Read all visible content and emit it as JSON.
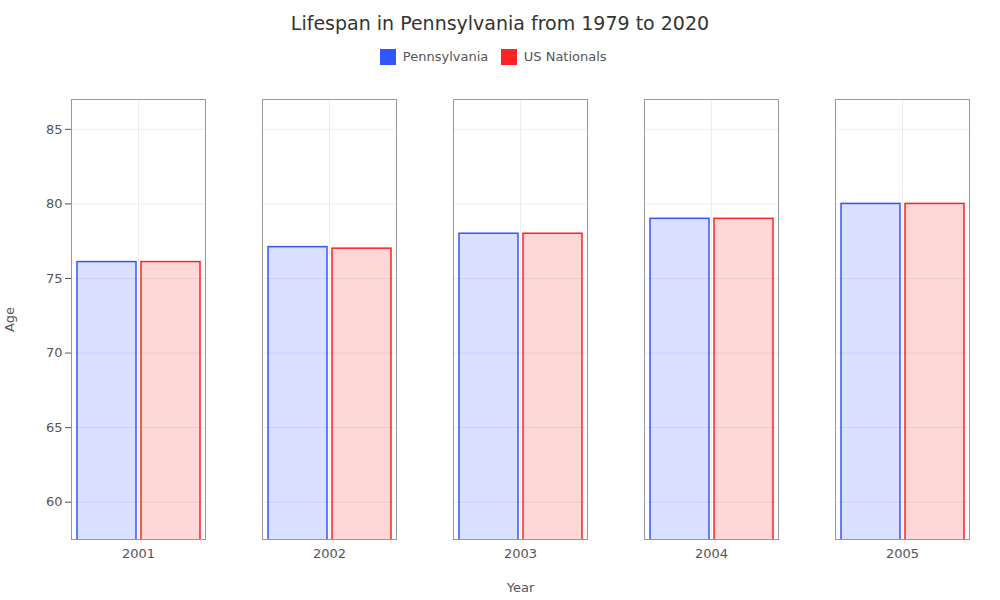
{
  "chart_data": {
    "type": "bar",
    "title": "Lifespan in Pennsylvania from 1979 to 2020",
    "x_label": "Year",
    "y_label": "Age",
    "categories": [
      2001,
      2002,
      2003,
      2004,
      2005
    ],
    "series": [
      {
        "name": "Pennsylvania",
        "color": "#3355ff",
        "values": [
          76.1,
          77.1,
          78.0,
          79.0,
          80.0
        ]
      },
      {
        "name": "US Nationals",
        "color": "#ff2222",
        "values": [
          76.1,
          77.0,
          78.0,
          79.0,
          80.0
        ]
      }
    ],
    "ylim": [
      57.5,
      87
    ],
    "yticks": [
      60,
      65,
      70,
      75,
      80,
      85
    ],
    "grid": true,
    "legend": "top"
  }
}
